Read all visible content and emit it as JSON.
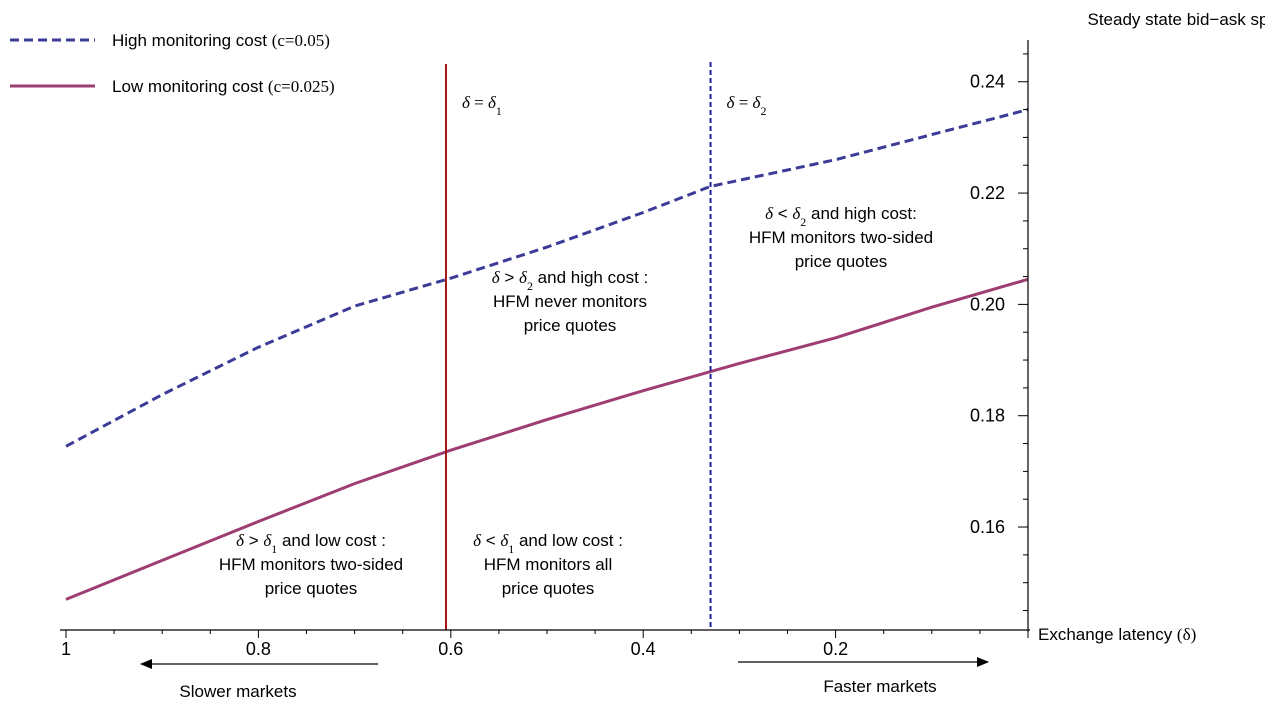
{
  "chart_data": {
    "type": "line",
    "ylabel": "Steady state bid−ask spread",
    "xlabel": {
      "text": "Exchange latency ",
      "symbol": "(δ)"
    },
    "xlim": [
      1,
      0
    ],
    "x_reversed": true,
    "ylim": [
      0.1415,
      0.2475
    ],
    "x_ticks": [
      "1",
      "0.8",
      "0.6",
      "0.4",
      "0.2"
    ],
    "y_ticks": [
      "0.16",
      "0.18",
      "0.20",
      "0.22",
      "0.24"
    ],
    "series": [
      {
        "name": "High monitoring cost",
        "name_suffix": "(c=0.05)",
        "style": "dashed",
        "color": "#3b3b98",
        "x": [
          1.0,
          0.9,
          0.8,
          0.7,
          0.6,
          0.5,
          0.4,
          0.33,
          0.2,
          0.1,
          0.0
        ],
        "y": [
          0.1745,
          0.1838,
          0.1923,
          0.1997,
          0.2047,
          0.2103,
          0.2165,
          0.2212,
          0.226,
          0.2305,
          0.235
        ]
      },
      {
        "name": "Low monitoring cost",
        "name_suffix": "(c=0.025)",
        "style": "solid",
        "color": "#9e3d72",
        "x": [
          1.0,
          0.9,
          0.8,
          0.7,
          0.6,
          0.5,
          0.4,
          0.3,
          0.2,
          0.1,
          0.0
        ],
        "y": [
          0.147,
          0.154,
          0.161,
          0.1678,
          0.1738,
          0.1793,
          0.1845,
          0.1894,
          0.194,
          0.1995,
          0.2045
        ]
      }
    ],
    "vertical_lines": [
      {
        "x": 0.605,
        "style": "solid",
        "color": "#a01818",
        "label": "δ = δ",
        "sub": "1"
      },
      {
        "x": 0.33,
        "style": "dashed",
        "color": "#1f1f9e",
        "label": "δ = δ",
        "sub": "2"
      }
    ],
    "annotations": [
      {
        "lines": [
          "δ < δ|2| and high cost:",
          "HFM monitors two-sided",
          "price quotes"
        ]
      },
      {
        "lines": [
          "δ > δ|2| and high cost :",
          "HFM never monitors",
          "price quotes"
        ]
      },
      {
        "lines": [
          "δ > δ|1| and low cost :",
          "HFM monitors two-sided",
          "price quotes"
        ]
      },
      {
        "lines": [
          "δ < δ|1| and low cost :",
          "HFM monitors all",
          "price quotes"
        ]
      }
    ],
    "arrows": [
      {
        "label": "Slower markets",
        "direction": "left"
      },
      {
        "label": "Faster markets",
        "direction": "right"
      }
    ],
    "legend_position": "top-left"
  }
}
